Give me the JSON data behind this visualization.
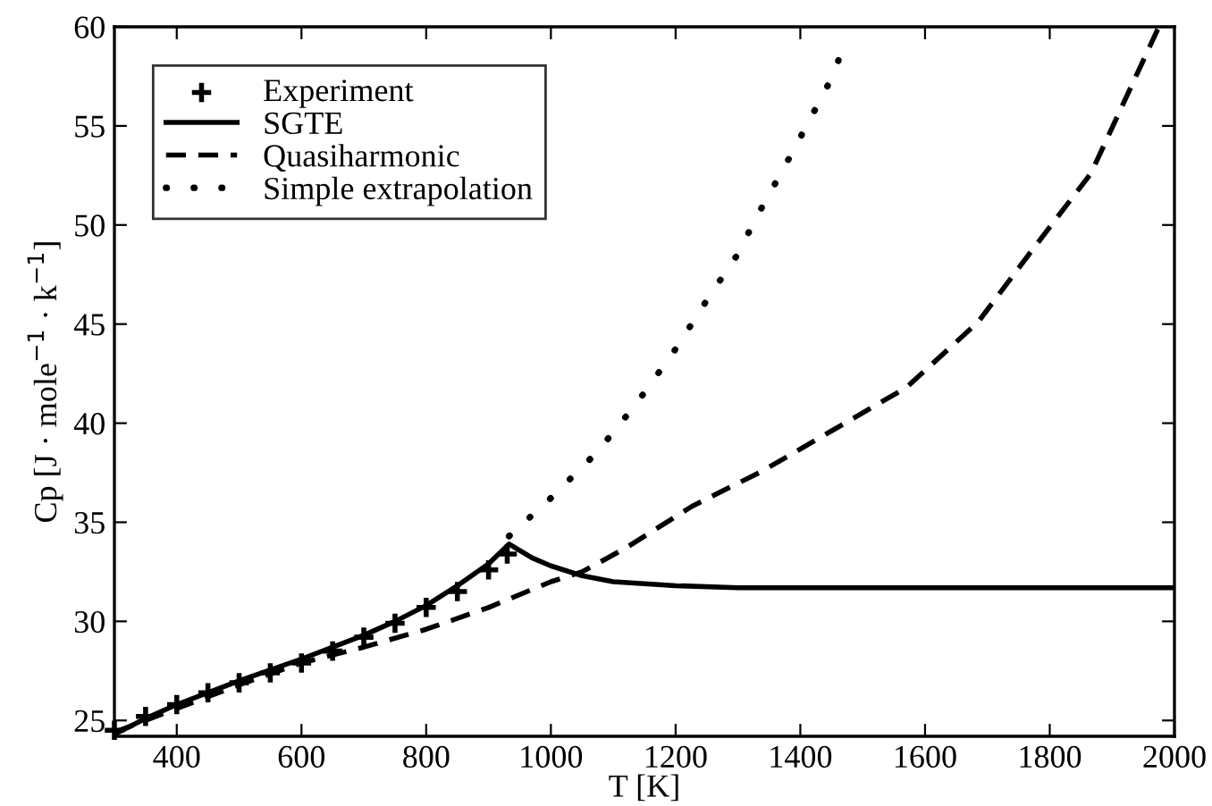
{
  "chart_data": {
    "type": "line",
    "xlabel": "T [K]",
    "ylabel": "Cp [J · mole$^{−1}$ · k$^{−1}$]",
    "xlim": [
      300,
      2000
    ],
    "ylim": [
      24.2,
      60
    ],
    "xticks": [
      400,
      600,
      800,
      1000,
      1200,
      1400,
      1600,
      1800,
      2000
    ],
    "yticks": [
      25,
      30,
      35,
      40,
      45,
      50,
      55,
      60
    ],
    "grid": false,
    "legend": "top left",
    "series": [
      {
        "name": "Experiment",
        "type": "scatter",
        "marker": "cross",
        "color": "#000000",
        "x": [
          300,
          350,
          400,
          450,
          500,
          550,
          600,
          650,
          700,
          750,
          800,
          850,
          900,
          930
        ],
        "values": [
          24.5,
          25.2,
          25.8,
          26.4,
          26.9,
          27.4,
          27.9,
          28.5,
          29.2,
          29.9,
          30.7,
          31.5,
          32.6,
          33.4
        ]
      },
      {
        "name": "SGTE",
        "line_style": "solid",
        "color": "#000000",
        "x": [
          300,
          350,
          400,
          500,
          600,
          700,
          750,
          800,
          850,
          900,
          933,
          970,
          1000,
          1050,
          1100,
          1200,
          1300,
          2000
        ],
        "values": [
          24.3,
          25.1,
          25.8,
          27.0,
          28.1,
          29.3,
          30.0,
          30.8,
          31.8,
          32.9,
          33.9,
          33.2,
          32.8,
          32.3,
          32.0,
          31.8,
          31.7,
          31.7
        ]
      },
      {
        "name": "Quasiharmonic",
        "line_style": "dashed",
        "color": "#000000",
        "x": [
          300,
          400,
          500,
          600,
          700,
          800,
          900,
          1000,
          1050,
          1120,
          1226,
          1340,
          1455,
          1570,
          1685,
          1771,
          1866,
          1975
        ],
        "values": [
          24.4,
          25.6,
          26.8,
          27.9,
          28.7,
          29.6,
          30.7,
          32.0,
          32.5,
          33.7,
          35.8,
          37.6,
          39.7,
          41.8,
          45.1,
          48.7,
          52.6,
          60
        ]
      },
      {
        "name": "Simple extrapolation",
        "line_style": "dotted",
        "color": "#000000",
        "x": [
          933,
          996,
          1073,
          1135,
          1197,
          1254,
          1297,
          1335,
          1374,
          1415,
          1455,
          1474
        ],
        "values": [
          34.3,
          36.1,
          38.5,
          40.9,
          43.6,
          46.4,
          48.4,
          50.7,
          52.9,
          55.3,
          57.7,
          59.6
        ]
      }
    ]
  }
}
